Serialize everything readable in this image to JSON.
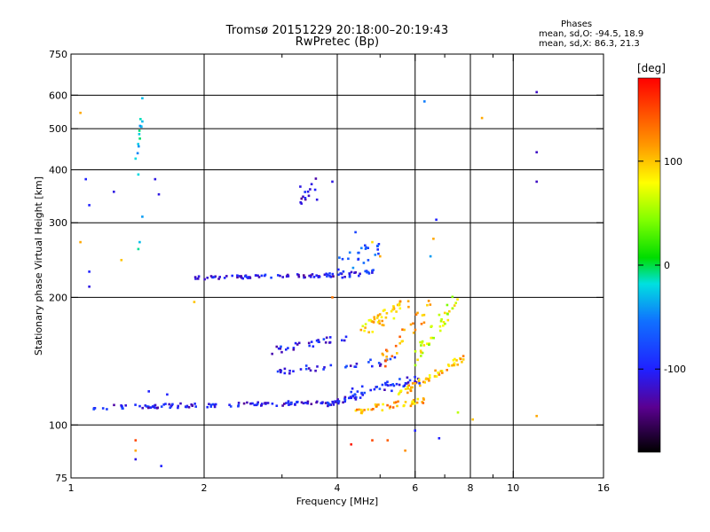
{
  "title_line1": "Tromsø 20151229 20:18:00–20:19:43",
  "title_line2": "RwPretec (Bp)",
  "stats": {
    "header": "Phases",
    "o_mode": "mean, sd,O: -94.5, 18.9",
    "x_mode": "mean, sd,X:  86.3, 21.3"
  },
  "colorbar": {
    "unit_label": "[deg]",
    "ticks": [
      {
        "value": 100,
        "label": "100"
      },
      {
        "value": 0,
        "label": "0"
      },
      {
        "value": -100,
        "label": "-100"
      }
    ],
    "range": [
      -180,
      180
    ]
  },
  "chart_data": {
    "type": "scatter",
    "xlabel": "Frequency [MHz]",
    "ylabel": "Stationary phase Virtual Height [km]",
    "xscale": "log",
    "yscale": "log",
    "xlim": [
      1,
      16
    ],
    "ylim": [
      75,
      750
    ],
    "xticks": [
      {
        "value": 1,
        "label": "1"
      },
      {
        "value": 2,
        "label": "2"
      },
      {
        "value": 4,
        "label": "4"
      },
      {
        "value": 6,
        "label": "6"
      },
      {
        "value": 8,
        "label": "8"
      },
      {
        "value": 10,
        "label": "10"
      },
      {
        "value": 16,
        "label": "16"
      }
    ],
    "xminor": [
      3,
      5,
      7,
      9
    ],
    "yticks": [
      {
        "value": 75,
        "label": "75"
      },
      {
        "value": 100,
        "label": "100"
      },
      {
        "value": 200,
        "label": "200"
      },
      {
        "value": 300,
        "label": "300"
      },
      {
        "value": 400,
        "label": "400"
      },
      {
        "value": 500,
        "label": "500"
      },
      {
        "value": 600,
        "label": "600"
      },
      {
        "value": 750,
        "label": "750"
      }
    ],
    "grid_x": [
      2,
      4,
      6,
      8,
      10
    ],
    "grid_y": [
      100,
      200,
      300,
      400,
      500,
      600
    ],
    "grid": true,
    "color_variable": "phase [deg]",
    "traces": [
      {
        "f0": 1.12,
        "f1": 4.05,
        "h0": 110,
        "h1": 113,
        "phase": -105,
        "n": 120,
        "spread": 0.012
      },
      {
        "f0": 3.8,
        "f1": 4.6,
        "h0": 112,
        "h1": 118,
        "phase": -100,
        "n": 25,
        "spread": 0.015
      },
      {
        "f0": 1.9,
        "f1": 4.1,
        "h0": 222,
        "h1": 226,
        "phase": -110,
        "n": 75,
        "spread": 0.01
      },
      {
        "f0": 4.1,
        "f1": 4.9,
        "h0": 226,
        "h1": 230,
        "phase": -95,
        "n": 20,
        "spread": 0.015
      },
      {
        "f0": 2.85,
        "f1": 4.3,
        "h0": 150,
        "h1": 162,
        "phase": -100,
        "n": 30,
        "spread": 0.02
      },
      {
        "f0": 2.9,
        "f1": 5.5,
        "h0": 133,
        "h1": 142,
        "phase": -100,
        "n": 35,
        "spread": 0.02
      },
      {
        "f0": 4.2,
        "f1": 6.2,
        "h0": 118,
        "h1": 128,
        "phase": -95,
        "n": 40,
        "spread": 0.03
      },
      {
        "f0": 4.4,
        "f1": 6.4,
        "h0": 108,
        "h1": 114,
        "phase": 110,
        "n": 45,
        "spread": 0.02
      },
      {
        "f0": 5.5,
        "f1": 7.8,
        "h0": 118,
        "h1": 145,
        "phase": 100,
        "n": 55,
        "spread": 0.02
      },
      {
        "f0": 4.5,
        "f1": 5.8,
        "h0": 165,
        "h1": 195,
        "phase": 95,
        "n": 45,
        "spread": 0.04
      },
      {
        "f0": 6.0,
        "f1": 7.5,
        "h0": 145,
        "h1": 200,
        "phase": 70,
        "n": 40,
        "spread": 0.05
      },
      {
        "f0": 5.0,
        "f1": 6.5,
        "h0": 140,
        "h1": 190,
        "phase": 120,
        "n": 30,
        "spread": 0.05
      },
      {
        "f0": 4.0,
        "f1": 5.0,
        "h0": 235,
        "h1": 265,
        "phase": -70,
        "n": 25,
        "spread": 0.05
      },
      {
        "f0": 3.3,
        "f1": 3.6,
        "h0": 340,
        "h1": 370,
        "phase": -110,
        "n": 12,
        "spread": 0.04
      },
      {
        "f0": 1.4,
        "f1": 1.45,
        "h0": 380,
        "h1": 560,
        "phase": -30,
        "n": 10,
        "spread": 0.05
      }
    ],
    "points": [
      {
        "x": 1.05,
        "y": 545,
        "phase": 110
      },
      {
        "x": 1.08,
        "y": 380,
        "phase": -100
      },
      {
        "x": 1.1,
        "y": 330,
        "phase": -100
      },
      {
        "x": 1.05,
        "y": 270,
        "phase": 110
      },
      {
        "x": 1.1,
        "y": 230,
        "phase": -100
      },
      {
        "x": 1.1,
        "y": 212,
        "phase": -110
      },
      {
        "x": 1.25,
        "y": 355,
        "phase": -110
      },
      {
        "x": 1.3,
        "y": 245,
        "phase": 100
      },
      {
        "x": 1.4,
        "y": 425,
        "phase": -20
      },
      {
        "x": 1.42,
        "y": 390,
        "phase": -20
      },
      {
        "x": 1.45,
        "y": 590,
        "phase": -30
      },
      {
        "x": 1.45,
        "y": 520,
        "phase": -30
      },
      {
        "x": 1.45,
        "y": 310,
        "phase": -40
      },
      {
        "x": 1.43,
        "y": 270,
        "phase": -30
      },
      {
        "x": 1.42,
        "y": 260,
        "phase": -10
      },
      {
        "x": 1.55,
        "y": 380,
        "phase": -110
      },
      {
        "x": 1.58,
        "y": 350,
        "phase": -110
      },
      {
        "x": 1.4,
        "y": 92,
        "phase": 150
      },
      {
        "x": 1.4,
        "y": 87,
        "phase": 110
      },
      {
        "x": 1.4,
        "y": 83,
        "phase": -110
      },
      {
        "x": 1.6,
        "y": 80,
        "phase": -100
      },
      {
        "x": 1.5,
        "y": 120,
        "phase": -100
      },
      {
        "x": 1.65,
        "y": 118,
        "phase": -100
      },
      {
        "x": 1.9,
        "y": 195,
        "phase": 100
      },
      {
        "x": 3.3,
        "y": 365,
        "phase": -110
      },
      {
        "x": 3.5,
        "y": 370,
        "phase": -110
      },
      {
        "x": 3.6,
        "y": 340,
        "phase": -110
      },
      {
        "x": 3.9,
        "y": 375,
        "phase": -110
      },
      {
        "x": 4.4,
        "y": 285,
        "phase": -80
      },
      {
        "x": 4.8,
        "y": 270,
        "phase": 90
      },
      {
        "x": 5.0,
        "y": 250,
        "phase": 110
      },
      {
        "x": 6.3,
        "y": 580,
        "phase": -50
      },
      {
        "x": 6.5,
        "y": 250,
        "phase": -40
      },
      {
        "x": 6.7,
        "y": 305,
        "phase": -100
      },
      {
        "x": 6.6,
        "y": 275,
        "phase": 110
      },
      {
        "x": 5.7,
        "y": 87,
        "phase": 120
      },
      {
        "x": 4.3,
        "y": 90,
        "phase": 170
      },
      {
        "x": 4.8,
        "y": 92,
        "phase": 150
      },
      {
        "x": 5.2,
        "y": 92,
        "phase": 140
      },
      {
        "x": 6.0,
        "y": 97,
        "phase": -100
      },
      {
        "x": 6.8,
        "y": 93,
        "phase": -100
      },
      {
        "x": 8.5,
        "y": 530,
        "phase": 110
      },
      {
        "x": 11.3,
        "y": 610,
        "phase": -120
      },
      {
        "x": 11.3,
        "y": 440,
        "phase": -120
      },
      {
        "x": 11.3,
        "y": 375,
        "phase": -120
      },
      {
        "x": 11.3,
        "y": 105,
        "phase": 110
      },
      {
        "x": 8.1,
        "y": 103,
        "phase": 100
      },
      {
        "x": 7.5,
        "y": 107,
        "phase": 60
      },
      {
        "x": 2.7,
        "y": 225,
        "phase": -90
      },
      {
        "x": 3.9,
        "y": 200,
        "phase": 130
      }
    ]
  }
}
